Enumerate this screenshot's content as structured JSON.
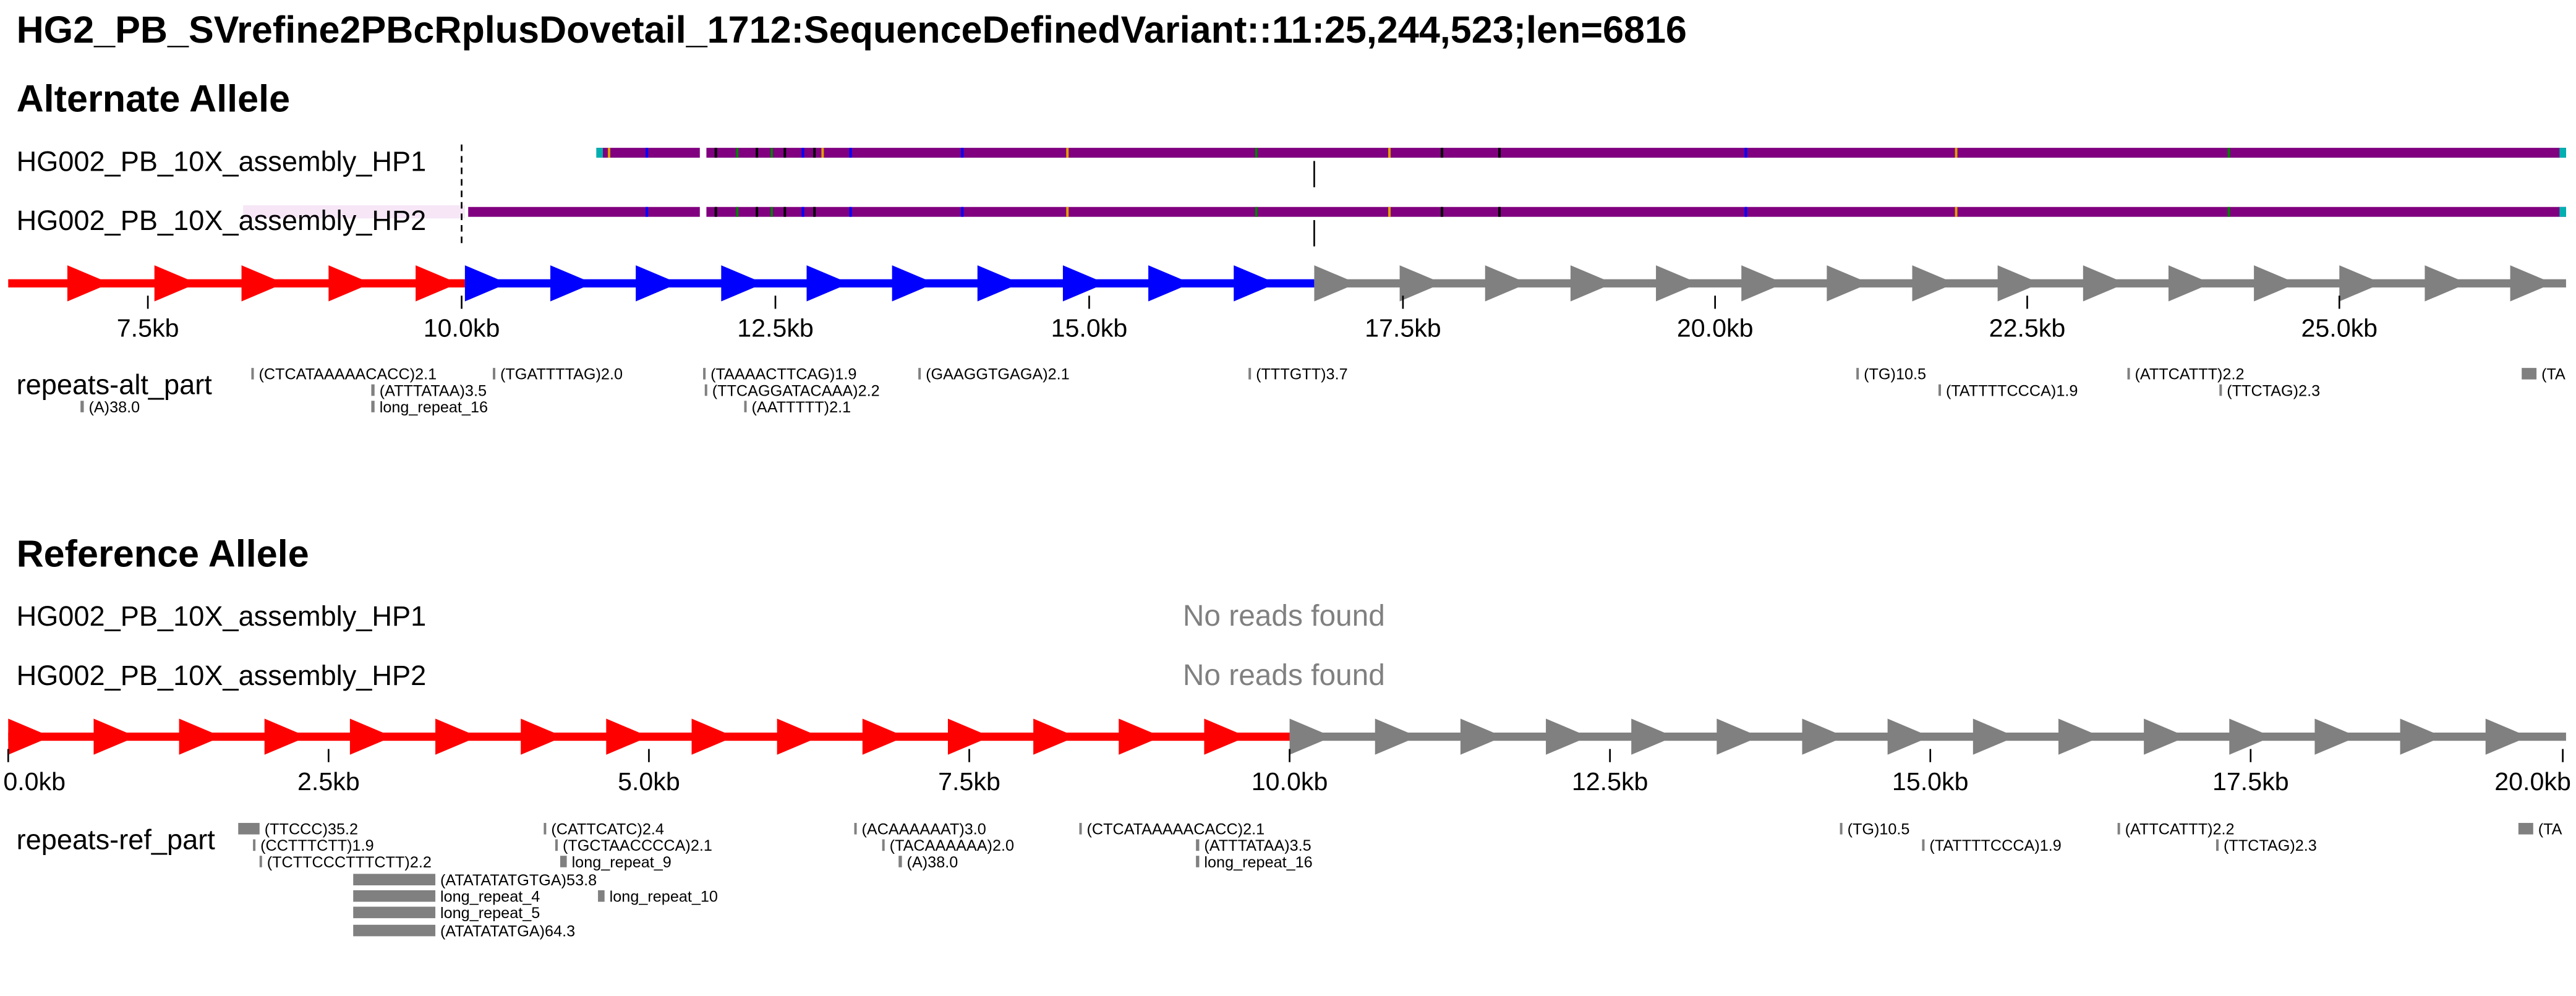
{
  "title": "HG2_PB_SVrefine2PBcRplusDovetail_1712:SequenceDefinedVariant::11:25,244,523;len=6816",
  "colors": {
    "red": "#ff0000",
    "blue": "#0000ff",
    "gray": "#808080",
    "read_purple": "#800080",
    "no_reads_text": "#808080"
  },
  "alt": {
    "section_title": "Alternate Allele",
    "tracks": [
      {
        "label": "HG002_PB_10X_assembly_HP1"
      },
      {
        "label": "HG002_PB_10X_assembly_HP2"
      }
    ],
    "axis_ticks": [
      {
        "label": "7.5kb"
      },
      {
        "label": "10.0kb"
      },
      {
        "label": "12.5kb"
      },
      {
        "label": "15.0kb"
      },
      {
        "label": "17.5kb"
      },
      {
        "label": "20.0kb"
      },
      {
        "label": "22.5kb"
      },
      {
        "label": "25.0kb"
      }
    ],
    "repeats_label": "repeats-alt_part",
    "repeats": [
      {
        "label": "(CTCATAAAAACACC)2.1"
      },
      {
        "label": "(TGATTTTAG)2.0"
      },
      {
        "label": "(ATTTATAA)3.5"
      },
      {
        "label": "long_repeat_16"
      },
      {
        "label": "(A)38.0"
      },
      {
        "label": "(TAAAACTTCAG)1.9"
      },
      {
        "label": "(TTCAGGATACAAA)2.2"
      },
      {
        "label": "(AATTTTT)2.1"
      },
      {
        "label": "(GAAGGTGAGA)2.1"
      },
      {
        "label": "(TTTGTT)3.7"
      },
      {
        "label": "(TG)10.5"
      },
      {
        "label": "(TATTTTCCCA)1.9"
      },
      {
        "label": "(ATTCATTT)2.2"
      },
      {
        "label": "(TTCTAG)2.3"
      },
      {
        "label": "(TA"
      }
    ]
  },
  "ref": {
    "section_title": "Reference Allele",
    "tracks": [
      {
        "label": "HG002_PB_10X_assembly_HP1",
        "status": "No reads found"
      },
      {
        "label": "HG002_PB_10X_assembly_HP2",
        "status": "No reads found"
      }
    ],
    "axis_ticks": [
      {
        "label": "0.0kb"
      },
      {
        "label": "2.5kb"
      },
      {
        "label": "5.0kb"
      },
      {
        "label": "7.5kb"
      },
      {
        "label": "10.0kb"
      },
      {
        "label": "12.5kb"
      },
      {
        "label": "15.0kb"
      },
      {
        "label": "17.5kb"
      },
      {
        "label": "20.0kb"
      }
    ],
    "repeats_label": "repeats-ref_part",
    "repeats": [
      {
        "label": "(TTCCC)35.2"
      },
      {
        "label": "(CCTTTCTT)1.9"
      },
      {
        "label": "(TCTTCCCTTTCTT)2.2"
      },
      {
        "label": "(ATATATATGTGA)53.8"
      },
      {
        "label": "long_repeat_4"
      },
      {
        "label": "long_repeat_5"
      },
      {
        "label": "(ATATATATGA)64.3"
      },
      {
        "label": "(CATTCATC)2.4"
      },
      {
        "label": "(TGCTAACCCCA)2.1"
      },
      {
        "label": "long_repeat_9"
      },
      {
        "label": "long_repeat_10"
      },
      {
        "label": "(ACAAAAAAT)3.0"
      },
      {
        "label": "(TACAAAAAA)2.0"
      },
      {
        "label": "(A)38.0"
      },
      {
        "label": "(CTCATAAAAACACC)2.1"
      },
      {
        "label": "(ATTTATAA)3.5"
      },
      {
        "label": "long_repeat_16"
      },
      {
        "label": "(TG)10.5"
      },
      {
        "label": "(TATTTTCCCA)1.9"
      },
      {
        "label": "(ATTCATTT)2.2"
      },
      {
        "label": "(TTCTAG)2.3"
      },
      {
        "label": "(TA"
      }
    ]
  }
}
